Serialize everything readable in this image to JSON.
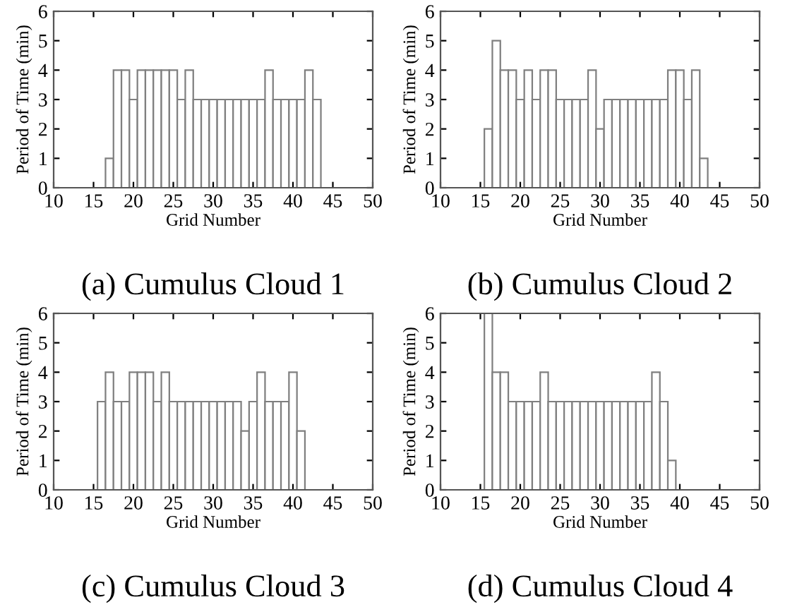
{
  "chart_data": [
    {
      "type": "histogram",
      "title": "(a) Cumulus Cloud 1",
      "xlabel": "Grid Number",
      "ylabel": "Period of Time (min)",
      "color": "#7f7f7f",
      "bins": [
        16.5,
        17.5,
        18.5,
        19.5,
        20.5,
        21.5,
        22.5,
        23.5,
        24.5,
        25.5,
        26.5,
        27.5,
        28.5,
        29.5,
        30.5,
        31.5,
        32.5,
        33.5,
        34.5,
        35.5,
        36.5,
        37.5,
        38.5,
        39.5,
        40.5,
        41.5,
        42.5,
        43.5
      ],
      "values": [
        1,
        4,
        4,
        3,
        4,
        4,
        4,
        4,
        4,
        3,
        4,
        3,
        3,
        3,
        3,
        3,
        3,
        3,
        3,
        3,
        4,
        3,
        3,
        3,
        3,
        4,
        3
      ],
      "xlim": [
        10,
        50
      ],
      "xticks": [
        10,
        15,
        20,
        25,
        30,
        35,
        40,
        45,
        50
      ],
      "ylim": [
        0,
        6
      ],
      "yticks": [
        0,
        1,
        2,
        3,
        4,
        5,
        6
      ],
      "grid": false
    },
    {
      "type": "histogram",
      "title": "(b) Cumulus Cloud 2",
      "xlabel": "Grid Number",
      "ylabel": "Period of Time (min)",
      "color": "#7f7f7f",
      "bins": [
        15.5,
        16.5,
        17.5,
        18.5,
        19.5,
        20.5,
        21.5,
        22.5,
        23.5,
        24.5,
        25.5,
        26.5,
        27.5,
        28.5,
        29.5,
        30.5,
        31.5,
        32.5,
        33.5,
        34.5,
        35.5,
        36.5,
        37.5,
        38.5,
        39.5,
        40.5,
        41.5,
        42.5,
        43.5
      ],
      "values": [
        2,
        5,
        4,
        4,
        3,
        4,
        3,
        4,
        4,
        3,
        3,
        3,
        3,
        4,
        2,
        3,
        3,
        3,
        3,
        3,
        3,
        3,
        3,
        4,
        4,
        3,
        4,
        1
      ],
      "xlim": [
        10,
        50
      ],
      "xticks": [
        10,
        15,
        20,
        25,
        30,
        35,
        40,
        45,
        50
      ],
      "ylim": [
        0,
        6
      ],
      "yticks": [
        0,
        1,
        2,
        3,
        4,
        5,
        6
      ],
      "grid": false
    },
    {
      "type": "histogram",
      "title": "(c) Cumulus Cloud 3",
      "xlabel": "Grid Number",
      "ylabel": "Period of Time (min)",
      "color": "#7f7f7f",
      "bins": [
        15.5,
        16.5,
        17.5,
        18.5,
        19.5,
        20.5,
        21.5,
        22.5,
        23.5,
        24.5,
        25.5,
        26.5,
        27.5,
        28.5,
        29.5,
        30.5,
        31.5,
        32.5,
        33.5,
        34.5,
        35.5,
        36.5,
        37.5,
        38.5,
        39.5,
        40.5,
        41.5
      ],
      "values": [
        3,
        4,
        3,
        3,
        4,
        4,
        4,
        3,
        4,
        3,
        3,
        3,
        3,
        3,
        3,
        3,
        3,
        3,
        2,
        3,
        4,
        3,
        3,
        3,
        4,
        2
      ],
      "xlim": [
        10,
        50
      ],
      "xticks": [
        10,
        15,
        20,
        25,
        30,
        35,
        40,
        45,
        50
      ],
      "ylim": [
        0,
        6
      ],
      "yticks": [
        0,
        1,
        2,
        3,
        4,
        5,
        6
      ],
      "grid": false
    },
    {
      "type": "histogram",
      "title": "(d) Cumulus Cloud 4",
      "xlabel": "Grid Number",
      "ylabel": "Period of Time (min)",
      "color": "#7f7f7f",
      "bins": [
        15.5,
        16.5,
        17.5,
        18.5,
        19.5,
        20.5,
        21.5,
        22.5,
        23.5,
        24.5,
        25.5,
        26.5,
        27.5,
        28.5,
        29.5,
        30.5,
        31.5,
        32.5,
        33.5,
        34.5,
        35.5,
        36.5,
        37.5,
        38.5,
        39.5
      ],
      "values": [
        6,
        4,
        4,
        3,
        3,
        3,
        3,
        4,
        3,
        3,
        3,
        3,
        3,
        3,
        3,
        3,
        3,
        3,
        3,
        3,
        3,
        4,
        3,
        1
      ],
      "xlim": [
        10,
        50
      ],
      "xticks": [
        10,
        15,
        20,
        25,
        30,
        35,
        40,
        45,
        50
      ],
      "ylim": [
        0,
        6
      ],
      "yticks": [
        0,
        1,
        2,
        3,
        4,
        5,
        6
      ],
      "grid": false
    }
  ]
}
